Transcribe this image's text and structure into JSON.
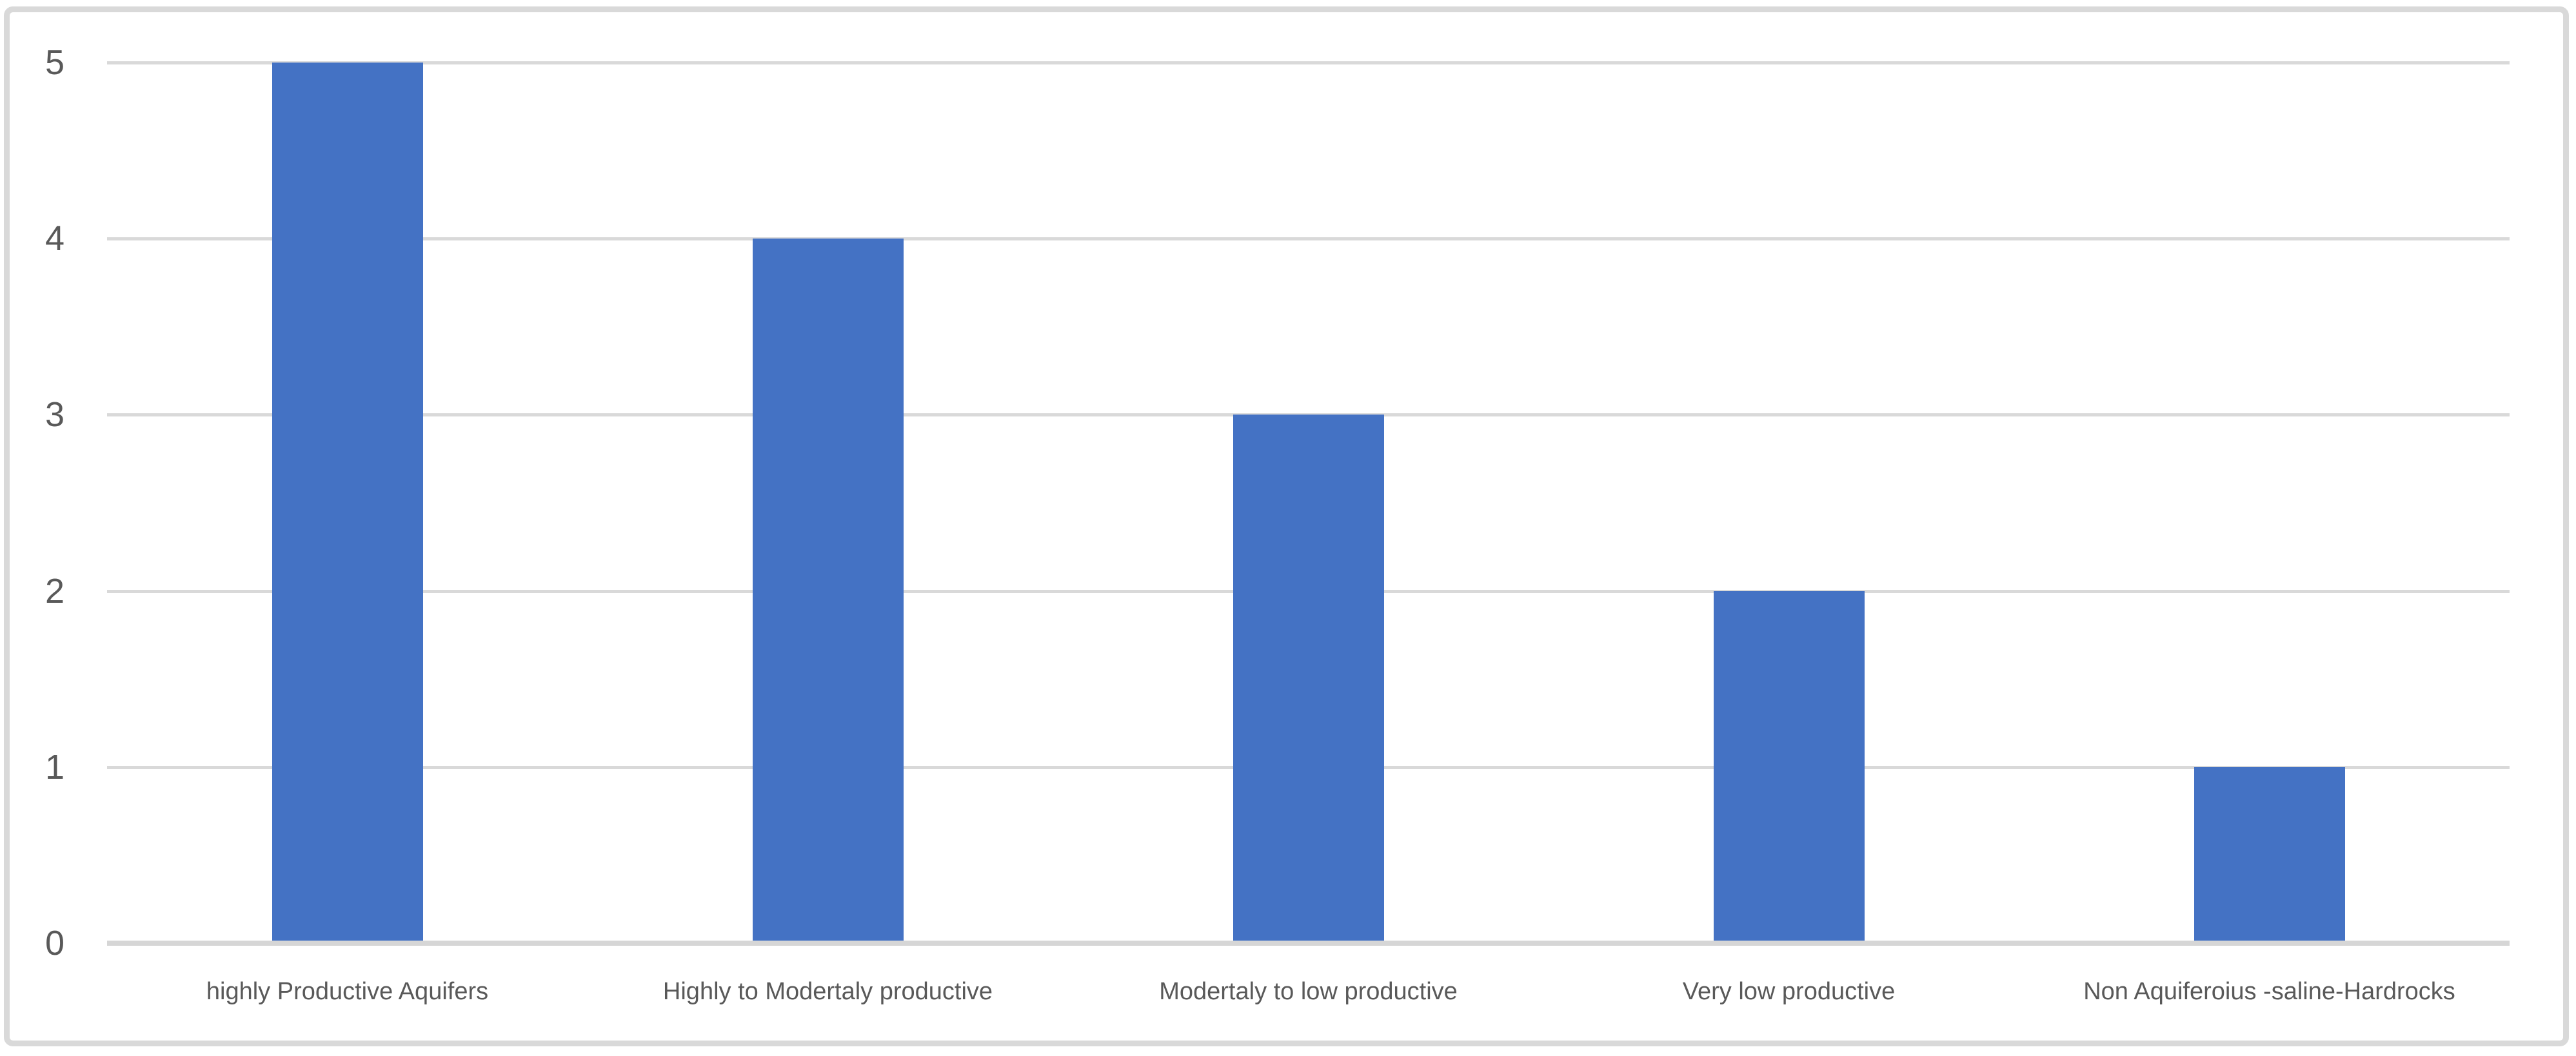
{
  "chart_data": {
    "type": "bar",
    "title": "",
    "xlabel": "",
    "ylabel": "",
    "categories": [
      "highly Productive Aquifers",
      "Highly to Modertaly productive",
      "Modertaly to low productive",
      "Very low productive",
      "Non Aquiferoius -saline-Hardrocks"
    ],
    "values": [
      5,
      4,
      3,
      2,
      1
    ],
    "yticks": [
      0,
      1,
      2,
      3,
      4,
      5
    ],
    "ylim": [
      0,
      5
    ],
    "grid": true,
    "legend": false,
    "colors": {
      "bar": "#4472C4",
      "gridline": "#D9D9D9",
      "axis_line": "#D6D6D6",
      "tick_label": "#595959",
      "frame_border": "#D9D9D9",
      "background": "#FFFFFF"
    }
  }
}
